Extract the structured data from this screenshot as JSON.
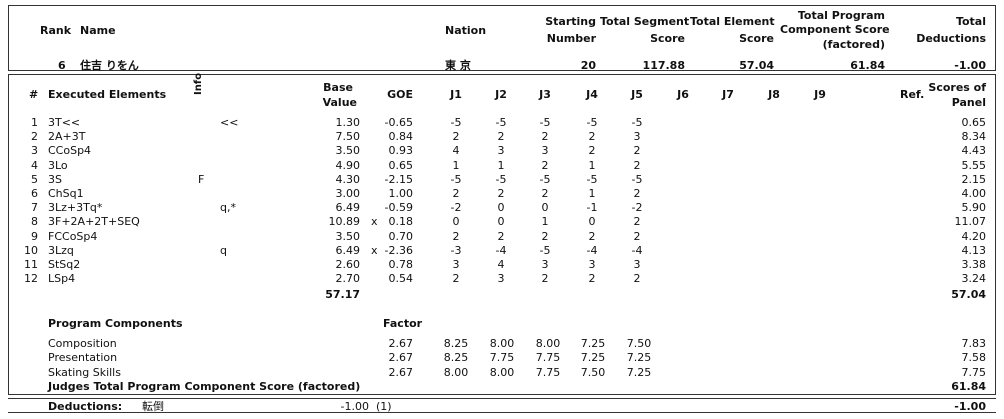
{
  "header": {
    "rank_label": "Rank",
    "name_label": "Name",
    "nation_label": "Nation",
    "starting_number_label": [
      "Starting",
      "Number"
    ],
    "tss_label": [
      "Total Segment",
      "Score"
    ],
    "tes_label": [
      "Total Element",
      "Score"
    ],
    "pcs_label": [
      "Total Program",
      "Component Score",
      "(factored)"
    ],
    "deductions_label": [
      "Total",
      "Deductions"
    ]
  },
  "skater": {
    "rank": "6",
    "name": "住吉 りをん",
    "nation": "東 京",
    "starting_number": "20",
    "tss": "117.88",
    "tes": "57.04",
    "pcs": "61.84",
    "deductions": "-1.00"
  },
  "elements_header": {
    "num": "#",
    "executed": "Executed Elements",
    "info": "Info",
    "base_value": [
      "Base",
      "Value"
    ],
    "goe": "GOE",
    "judges": [
      "J1",
      "J2",
      "J3",
      "J4",
      "J5",
      "J6",
      "J7",
      "J8",
      "J9"
    ],
    "ref": "Ref.",
    "panel": [
      "Scores of",
      "Panel"
    ]
  },
  "elements": [
    {
      "num": "1",
      "name": "3T<<",
      "info": "<<",
      "x": "",
      "bv": "1.30",
      "goe": "-0.65",
      "j": [
        "-5",
        "-5",
        "-5",
        "-5",
        "-5"
      ],
      "panel": "0.65"
    },
    {
      "num": "2",
      "name": "2A+3T",
      "info": "",
      "x": "",
      "bv": "7.50",
      "goe": "0.84",
      "j": [
        "2",
        "2",
        "2",
        "2",
        "3"
      ],
      "panel": "8.34"
    },
    {
      "num": "3",
      "name": "CCoSp4",
      "info": "",
      "x": "",
      "bv": "3.50",
      "goe": "0.93",
      "j": [
        "4",
        "3",
        "3",
        "2",
        "2"
      ],
      "panel": "4.43"
    },
    {
      "num": "4",
      "name": "3Lo",
      "info": "",
      "x": "",
      "bv": "4.90",
      "goe": "0.65",
      "j": [
        "1",
        "1",
        "2",
        "1",
        "2"
      ],
      "panel": "5.55"
    },
    {
      "num": "5",
      "name": "3S",
      "info": "F",
      "x": "",
      "bv": "4.30",
      "goe": "-2.15",
      "j": [
        "-5",
        "-5",
        "-5",
        "-5",
        "-5"
      ],
      "panel": "2.15"
    },
    {
      "num": "6",
      "name": "ChSq1",
      "info": "",
      "x": "",
      "bv": "3.00",
      "goe": "1.00",
      "j": [
        "2",
        "2",
        "2",
        "1",
        "2"
      ],
      "panel": "4.00"
    },
    {
      "num": "7",
      "name": "3Lz+3Tq*",
      "info": "q,*",
      "x": "",
      "bv": "6.49",
      "goe": "-0.59",
      "j": [
        "-2",
        "0",
        "0",
        "-1",
        "-2"
      ],
      "panel": "5.90"
    },
    {
      "num": "8",
      "name": "3F+2A+2T+SEQ",
      "info": "",
      "x": "x",
      "bv": "10.89",
      "goe": "0.18",
      "j": [
        "0",
        "0",
        "1",
        "0",
        "2"
      ],
      "panel": "11.07"
    },
    {
      "num": "9",
      "name": "FCCoSp4",
      "info": "",
      "x": "",
      "bv": "3.50",
      "goe": "0.70",
      "j": [
        "2",
        "2",
        "2",
        "2",
        "2"
      ],
      "panel": "4.20"
    },
    {
      "num": "10",
      "name": "3Lzq",
      "info": "q",
      "x": "x",
      "bv": "6.49",
      "goe": "-2.36",
      "j": [
        "-3",
        "-4",
        "-5",
        "-4",
        "-4"
      ],
      "panel": "4.13"
    },
    {
      "num": "11",
      "name": "StSq2",
      "info": "",
      "x": "",
      "bv": "2.60",
      "goe": "0.78",
      "j": [
        "3",
        "4",
        "3",
        "3",
        "3"
      ],
      "panel": "3.38"
    },
    {
      "num": "12",
      "name": "LSp4",
      "info": "",
      "x": "",
      "bv": "2.70",
      "goe": "0.54",
      "j": [
        "2",
        "3",
        "2",
        "2",
        "2"
      ],
      "panel": "3.24"
    }
  ],
  "x_marker_rows": [
    7
  ],
  "bv_total": "57.17",
  "tes_total": "57.04",
  "components": {
    "title": "Program Components",
    "factor_label": "Factor",
    "rows": [
      {
        "name": "Composition",
        "factor": "2.67",
        "j": [
          "8.25",
          "8.00",
          "8.00",
          "7.25",
          "7.50"
        ],
        "panel": "7.83"
      },
      {
        "name": "Presentation",
        "factor": "2.67",
        "j": [
          "8.25",
          "7.75",
          "7.75",
          "7.25",
          "7.25"
        ],
        "panel": "7.58"
      },
      {
        "name": "Skating Skills",
        "factor": "2.67",
        "j": [
          "8.00",
          "8.00",
          "7.75",
          "7.50",
          "7.25"
        ],
        "panel": "7.75"
      }
    ],
    "total_label": "Judges Total Program Component Score (factored)",
    "total": "61.84"
  },
  "deductions": {
    "label": "Deductions:",
    "type": "転倒",
    "value": "-1.00",
    "count": "(1)",
    "total": "-1.00"
  }
}
